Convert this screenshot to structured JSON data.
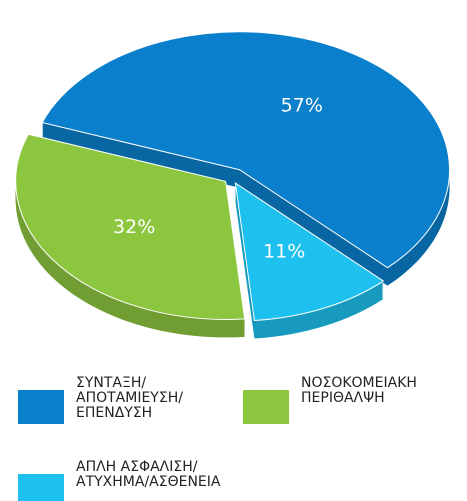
{
  "chart_data": {
    "type": "pie",
    "categories": [
      "ΣΥΝΤΑΞΗ/ ΑΠΟΤΑΜΙΕΥΣΗ/ ΕΠΕΝΔΥΣΗ",
      "ΑΠΛΗ ΑΣΦΑΛΙΣΗ/ ΑΤΥΧΗΜΑ/ΑΣΘΕΝΕΙΑ",
      "ΝΟΣΟΚΟΜΕΙΑΚΗ ΠΕΡΙΘΑΛΨΗ"
    ],
    "values": [
      57,
      11,
      32
    ],
    "value_labels": [
      "57%",
      "11%",
      "32%"
    ],
    "colors": [
      "#0a7fcb",
      "#1dc0ee",
      "#8cc63f"
    ]
  }
}
